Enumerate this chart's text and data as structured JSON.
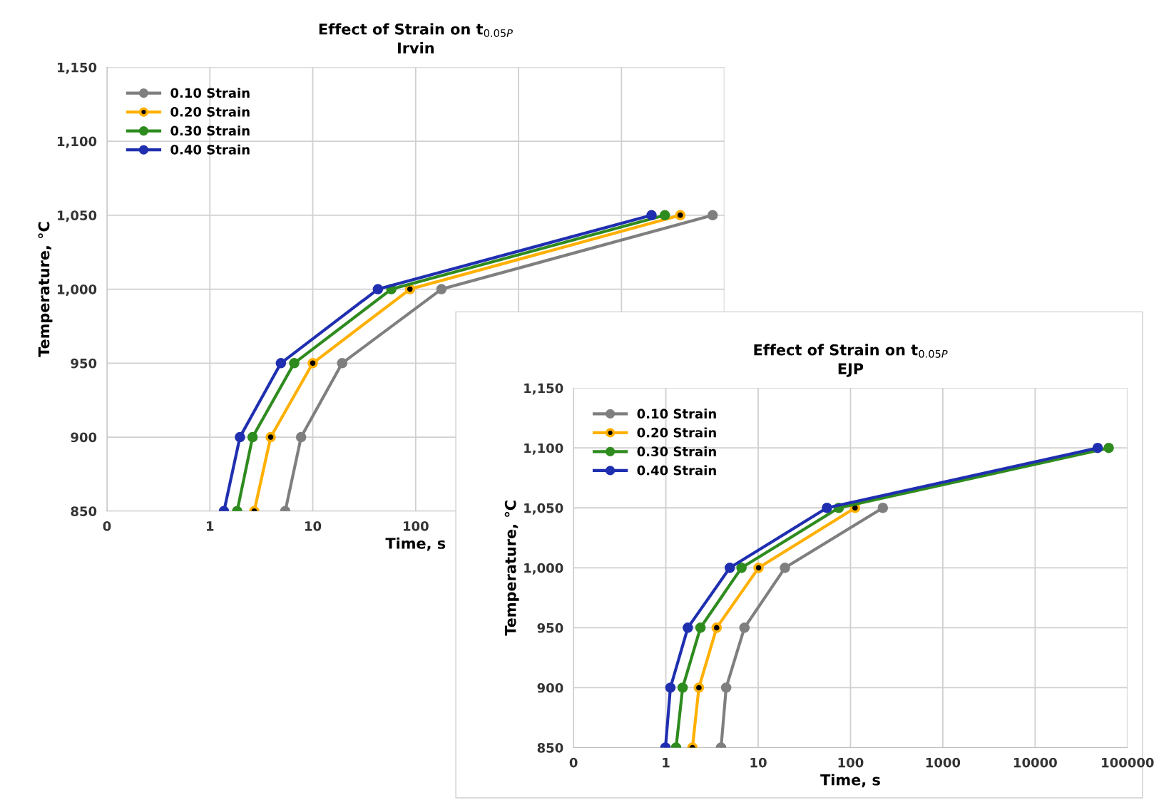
{
  "chart_data": [
    {
      "type": "line",
      "title": "Effect of Strain on t$_{0.05P}$\nIrvin",
      "xlabel": "Time, s",
      "ylabel": "Temperature, °C",
      "log": "x",
      "grid": true,
      "legend": "top left",
      "marker": "circle",
      "xlim": [
        0.1,
        100000
      ],
      "xticks": [
        {
          "value": 0.1,
          "label": "0"
        },
        1,
        10,
        100,
        {
          "value": 1000,
          "label": null
        },
        {
          "value": 10000,
          "label": null
        },
        {
          "value": 100000,
          "label": null
        }
      ],
      "ylim": [
        850,
        1150
      ],
      "yticks": [
        {
          "value": 850,
          "label": "850"
        },
        {
          "value": 900,
          "label": "900"
        },
        {
          "value": 950,
          "label": "950"
        },
        {
          "value": 1000,
          "label": "1,000"
        },
        {
          "value": 1050,
          "label": "1,050"
        },
        {
          "value": 1100,
          "label": "1,100"
        },
        {
          "value": 1150,
          "label": "1,150"
        }
      ],
      "series": [
        {
          "name": "0.10 Strain",
          "color": "#7f7f7f",
          "x": [
            5.4,
            7.7,
            19.3,
            178,
            76900
          ],
          "values": [
            850,
            900,
            950,
            1000,
            1050
          ]
        },
        {
          "name": "0.20 Strain",
          "color": "#ffb000",
          "x": [
            2.7,
            3.9,
            10,
            88,
            37300
          ],
          "values": [
            850,
            900,
            950,
            1000,
            1050
          ]
        },
        {
          "name": "0.30 Strain",
          "color": "#2e8b1e",
          "x": [
            1.84,
            2.6,
            6.6,
            58,
            26400
          ],
          "values": [
            850,
            900,
            950,
            1000,
            1050
          ]
        },
        {
          "name": "0.40 Strain",
          "color": "#1f2fb0",
          "x": [
            1.37,
            1.96,
            4.9,
            43,
            19600
          ],
          "values": [
            850,
            900,
            950,
            1000,
            1050
          ]
        }
      ]
    },
    {
      "type": "line",
      "title": "Effect of Strain on t$_{0.05P}$\nEJP",
      "xlabel": "Time, s",
      "ylabel": "Temperature, °C",
      "log": "x",
      "grid": true,
      "legend": "top left",
      "marker": "circle",
      "xlim": [
        0.1,
        100000
      ],
      "xticks": [
        {
          "value": 0.1,
          "label": "0"
        },
        1,
        10,
        100,
        1000,
        10000,
        100000
      ],
      "ylim": [
        850,
        1150
      ],
      "yticks": [
        {
          "value": 850,
          "label": "850"
        },
        {
          "value": 900,
          "label": "900"
        },
        {
          "value": 950,
          "label": "950"
        },
        {
          "value": 1000,
          "label": "1,000"
        },
        {
          "value": 1050,
          "label": "1,050"
        },
        {
          "value": 1100,
          "label": "1,100"
        },
        {
          "value": 1150,
          "label": "1,150"
        }
      ],
      "series": [
        {
          "name": "0.10 Strain",
          "color": "#7f7f7f",
          "x": [
            3.96,
            4.5,
            7.1,
            19.5,
            224
          ],
          "values": [
            850,
            900,
            950,
            1000,
            1050
          ]
        },
        {
          "name": "0.20 Strain",
          "color": "#ffb000",
          "x": [
            1.94,
            2.28,
            3.55,
            10.1,
            112
          ],
          "values": [
            850,
            900,
            950,
            1000,
            1050
          ]
        },
        {
          "name": "0.30 Strain",
          "color": "#2e8b1e",
          "x": [
            1.29,
            1.52,
            2.37,
            6.6,
            74.6,
            62700
          ],
          "values": [
            850,
            900,
            950,
            1000,
            1050,
            1100
          ]
        },
        {
          "name": "0.40 Strain",
          "color": "#1f2fb0",
          "x": [
            0.99,
            1.12,
            1.73,
            4.93,
            55.6,
            47600
          ],
          "values": [
            850,
            900,
            950,
            1000,
            1050,
            1100
          ]
        }
      ]
    }
  ]
}
